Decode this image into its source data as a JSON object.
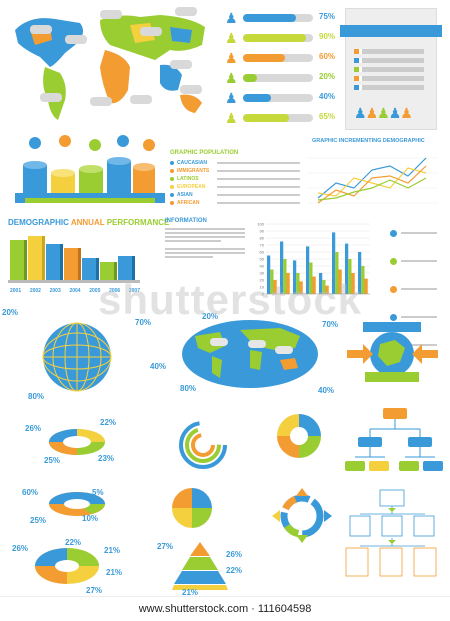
{
  "colors": {
    "blue": "#3a9ad9",
    "green": "#9acd32",
    "orange": "#f39c32",
    "yellow": "#f4d03f",
    "gray": "#c8c8c8",
    "dark": "#1f5f8b"
  },
  "world_map": {
    "icon": "world-map"
  },
  "people_bars": {
    "items": [
      {
        "icon": "person-icon",
        "value": 0.75,
        "label": "75%",
        "color": "#3a9ad9"
      },
      {
        "icon": "person-icon",
        "value": 0.9,
        "label": "90%",
        "color": "#c5d93b"
      },
      {
        "icon": "person-icon",
        "value": 0.6,
        "label": "60%",
        "color": "#f39c32"
      },
      {
        "icon": "person-icon",
        "value": 0.2,
        "label": "20%",
        "color": "#9acd32"
      },
      {
        "icon": "person-icon",
        "value": 0.4,
        "label": "40%",
        "color": "#3a9ad9"
      },
      {
        "icon": "person-icon",
        "value": 0.65,
        "label": "65%",
        "color": "#c5d93b"
      }
    ]
  },
  "coin_section": {
    "title": "GRAPHIC POPULATION",
    "items": [
      "CAUCASIAN",
      "IMMIGRANTS",
      "LATINOS",
      "EUROPEAN",
      "ASIAN",
      "AFRICAN"
    ]
  },
  "line_chart": {
    "title": "GRAPHIC INCREMENTING DEMOGRAPHIC"
  },
  "bar3d": {
    "title_a": "DEMOGRAPHIC",
    "title_b": "ANNUAL",
    "title_c": "PERFORMANCE",
    "years": [
      "2001",
      "2002",
      "2003",
      "2004",
      "2005",
      "2006",
      "2007"
    ]
  },
  "information": {
    "title": "INFORMATION"
  },
  "chart_data": {
    "type": "bar",
    "ylim": [
      0,
      100
    ],
    "yticks": [
      "100",
      "90",
      "80",
      "70",
      "60",
      "50",
      "40",
      "30",
      "20",
      "10",
      "0"
    ],
    "series": [
      {
        "values": [
          55,
          75,
          48,
          68,
          30,
          88,
          72,
          60
        ],
        "color": "#3a9ad9"
      },
      {
        "values": [
          35,
          50,
          30,
          45,
          20,
          60,
          50,
          40
        ],
        "color": "#9acd32"
      },
      {
        "values": [
          20,
          30,
          18,
          25,
          12,
          35,
          30,
          22
        ],
        "color": "#f39c32"
      }
    ]
  },
  "globe_labels": {
    "tl": "20%",
    "tr": "70%",
    "r": "40%",
    "bl": "80%"
  },
  "map2_labels": {
    "tl": "20%",
    "tr": "70%",
    "bl": "80%",
    "br": "40%"
  },
  "pie_a": {
    "l1": "26%",
    "r1": "22%",
    "l2": "25%",
    "r2": "23%"
  },
  "pie_b": {
    "l1": "60%",
    "r1": "5%",
    "l2": "25%",
    "r2": "10%"
  },
  "pie_c": {
    "l1": "26%",
    "r1": "21%",
    "l2": "22%",
    "r2": "21%",
    "b": "27%"
  },
  "pyramid": {
    "l": "27%",
    "r1": "26%",
    "r2": "22%",
    "b": "21%"
  },
  "watermark": {
    "ghost": "shutterstock",
    "url": "www.shutterstock.com · 111604598"
  }
}
